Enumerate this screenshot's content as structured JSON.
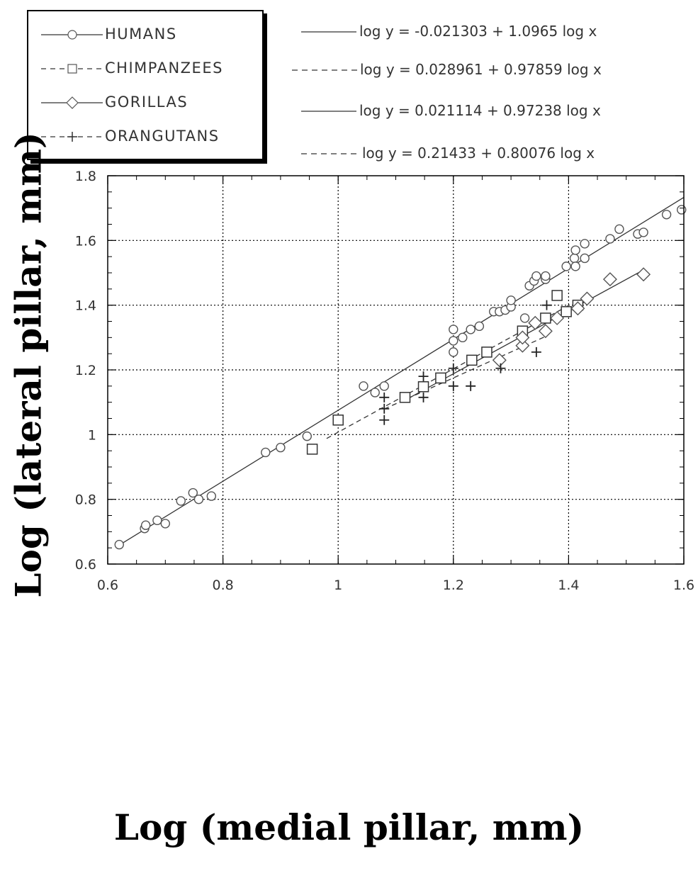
{
  "chart_data": {
    "type": "scatter",
    "xlabel": "Log (medial pillar, mm)",
    "ylabel": "Log (lateral pillar, mm)",
    "xlim": [
      0.6,
      1.6
    ],
    "ylim": [
      0.6,
      1.8
    ],
    "xticks": [
      "0.6",
      "0.8",
      "1",
      "1.2",
      "1.4",
      "1.6"
    ],
    "yticks": [
      "0.6",
      "0.8",
      "1",
      "1.2",
      "1.4",
      "1.6",
      "1.8"
    ],
    "grid": true,
    "legend_position": "top-left",
    "series": [
      {
        "name": "HUMANS",
        "marker": "circle",
        "line_style": "solid",
        "equation": "log y = -0.021303 + 1.0965 log x",
        "fit": {
          "intercept": -0.021303,
          "slope": 1.0965,
          "x_range": [
            0.62,
            1.6
          ]
        },
        "points": [
          [
            0.62,
            0.66
          ],
          [
            0.664,
            0.71
          ],
          [
            0.666,
            0.72
          ],
          [
            0.686,
            0.735
          ],
          [
            0.7,
            0.725
          ],
          [
            0.727,
            0.795
          ],
          [
            0.748,
            0.82
          ],
          [
            0.758,
            0.8
          ],
          [
            0.78,
            0.81
          ],
          [
            0.874,
            0.945
          ],
          [
            0.9,
            0.96
          ],
          [
            0.946,
            0.995
          ],
          [
            1.044,
            1.15
          ],
          [
            1.064,
            1.13
          ],
          [
            1.08,
            1.15
          ],
          [
            1.2,
            1.325
          ],
          [
            1.2,
            1.29
          ],
          [
            1.2,
            1.255
          ],
          [
            1.216,
            1.3
          ],
          [
            1.23,
            1.325
          ],
          [
            1.245,
            1.335
          ],
          [
            1.27,
            1.38
          ],
          [
            1.28,
            1.38
          ],
          [
            1.29,
            1.385
          ],
          [
            1.3,
            1.395
          ],
          [
            1.3,
            1.415
          ],
          [
            1.324,
            1.36
          ],
          [
            1.332,
            1.46
          ],
          [
            1.34,
            1.475
          ],
          [
            1.344,
            1.49
          ],
          [
            1.36,
            1.48
          ],
          [
            1.36,
            1.49
          ],
          [
            1.396,
            1.52
          ],
          [
            1.41,
            1.545
          ],
          [
            1.412,
            1.57
          ],
          [
            1.412,
            1.52
          ],
          [
            1.428,
            1.59
          ],
          [
            1.428,
            1.545
          ],
          [
            1.472,
            1.605
          ],
          [
            1.488,
            1.635
          ],
          [
            1.52,
            1.62
          ],
          [
            1.53,
            1.625
          ],
          [
            1.57,
            1.68
          ],
          [
            1.596,
            1.695
          ]
        ]
      },
      {
        "name": "CHIMPANZEES",
        "marker": "square",
        "line_style": "dashed",
        "equation": "log y = 0.028961 + 0.97859 log x",
        "fit": {
          "intercept": 0.028961,
          "slope": 0.97859,
          "x_range": [
            0.98,
            1.4
          ]
        },
        "points": [
          [
            0.955,
            0.955
          ],
          [
            1.0,
            1.045
          ],
          [
            1.116,
            1.115
          ],
          [
            1.148,
            1.148
          ],
          [
            1.178,
            1.175
          ],
          [
            1.232,
            1.23
          ],
          [
            1.258,
            1.255
          ],
          [
            1.32,
            1.32
          ],
          [
            1.36,
            1.36
          ],
          [
            1.38,
            1.43
          ],
          [
            1.396,
            1.38
          ],
          [
            1.416,
            1.4
          ]
        ]
      },
      {
        "name": "GORILLAS",
        "marker": "diamond",
        "line_style": "solid",
        "equation": "log y = 0.021114 + 0.97238 log x",
        "fit": {
          "intercept": 0.021114,
          "slope": 0.97238,
          "x_range": [
            1.12,
            1.53
          ]
        },
        "points": [
          [
            1.28,
            1.23
          ],
          [
            1.32,
            1.275
          ],
          [
            1.32,
            1.3
          ],
          [
            1.342,
            1.345
          ],
          [
            1.36,
            1.32
          ],
          [
            1.38,
            1.36
          ],
          [
            1.416,
            1.39
          ],
          [
            1.432,
            1.42
          ],
          [
            1.472,
            1.48
          ],
          [
            1.53,
            1.495
          ]
        ]
      },
      {
        "name": "ORANGUTANS",
        "marker": "plus",
        "line_style": "dashed",
        "equation": "log y = 0.21433 + 0.80076 log x",
        "fit": {
          "intercept": 0.21433,
          "slope": 0.80076,
          "x_range": [
            1.08,
            1.36
          ]
        },
        "points": [
          [
            1.08,
            1.045
          ],
          [
            1.08,
            1.08
          ],
          [
            1.08,
            1.115
          ],
          [
            1.148,
            1.115
          ],
          [
            1.148,
            1.18
          ],
          [
            1.2,
            1.15
          ],
          [
            1.2,
            1.205
          ],
          [
            1.23,
            1.15
          ],
          [
            1.282,
            1.205
          ],
          [
            1.344,
            1.255
          ],
          [
            1.362,
            1.4
          ]
        ]
      }
    ]
  },
  "colors": {
    "axes": "#000000",
    "grid": "#000000",
    "markers": "#555555",
    "text": "#333333"
  }
}
